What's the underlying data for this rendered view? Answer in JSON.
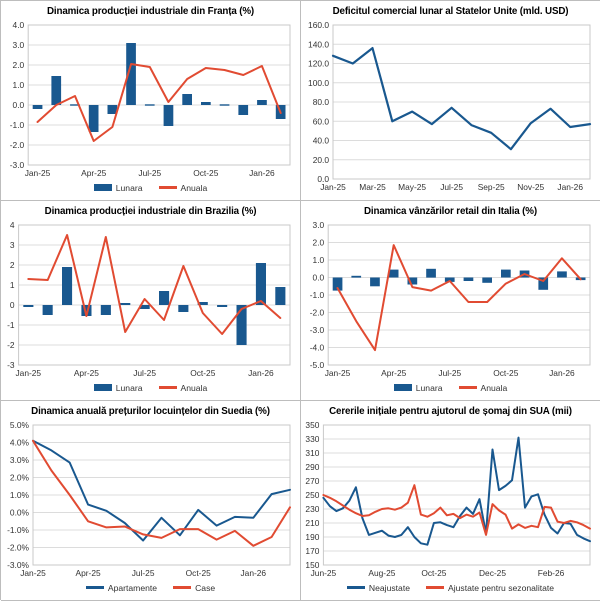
{
  "page": {
    "background": "#ffffff",
    "panel_border": "#bdbdbd"
  },
  "colors": {
    "blue": "#19588F",
    "red": "#E14B32",
    "grid": "#DCDCDC",
    "axis": "#C9C9C9",
    "tick_text": "#333333",
    "title_text": "#000000"
  },
  "chart_data": [
    {
      "type": "bar+line",
      "title": "Dinamica producției industriale din Franța (%)",
      "categories": [
        "Jan-25",
        "Feb-25",
        "Mar-25",
        "Apr-25",
        "May-25",
        "Jun-25",
        "Jul-25",
        "Aug-25",
        "Sep-25",
        "Oct-25",
        "Nov-25",
        "Dec-25",
        "Jan-26",
        "Feb-26"
      ],
      "x_tick_labels": [
        "Jan-25",
        "Apr-25",
        "Jul-25",
        "Oct-25",
        "Jan-26"
      ],
      "x_ticks": [
        0,
        3,
        6,
        9,
        12
      ],
      "ylim": [
        -3,
        4
      ],
      "ystep": 1,
      "yfmt": "1dp",
      "grid": true,
      "legend": true,
      "legend_position": "bottom",
      "series": [
        {
          "name": "Lunara",
          "type": "bar",
          "color": "blue",
          "values": [
            -0.2,
            1.45,
            0.05,
            -1.35,
            -0.45,
            3.1,
            -0.05,
            -1.05,
            0.55,
            0.15,
            0.05,
            -0.5,
            0.25,
            -0.7
          ]
        },
        {
          "name": "Anuala",
          "type": "line",
          "color": "red",
          "values": [
            -0.85,
            0.0,
            0.45,
            -1.8,
            -1.1,
            2.05,
            1.9,
            0.15,
            1.3,
            1.85,
            1.75,
            1.5,
            1.95,
            -0.4
          ]
        }
      ]
    },
    {
      "type": "line",
      "title": "Deficitul comercial lunar al Statelor Unite (mld. USD)",
      "categories": [
        "Jan-25",
        "Feb-25",
        "Mar-25",
        "Apr-25",
        "May-25",
        "Jun-25",
        "Jul-25",
        "Aug-25",
        "Sep-25",
        "Oct-25",
        "Nov-25",
        "Dec-25",
        "Jan-26",
        "Feb-26"
      ],
      "x_tick_labels": [
        "Jan-25",
        "Mar-25",
        "May-25",
        "Jul-25",
        "Sep-25",
        "Nov-25",
        "Jan-26"
      ],
      "x_ticks": [
        0,
        2,
        4,
        6,
        8,
        10,
        12
      ],
      "ylim": [
        0,
        160
      ],
      "ystep": 20,
      "yfmt": "1dp",
      "grid": true,
      "legend": false,
      "series": [
        {
          "name": "Deficit comercial",
          "type": "line",
          "color": "blue",
          "width": 2.2,
          "values": [
            128,
            120,
            136,
            60,
            70,
            57,
            74,
            56,
            48,
            31,
            58,
            73,
            54,
            57
          ]
        }
      ]
    },
    {
      "type": "bar+line",
      "title": "Dinamica producției industriale din Brazilia (%)",
      "categories": [
        "Jan-25",
        "Feb-25",
        "Mar-25",
        "Apr-25",
        "May-25",
        "Jun-25",
        "Jul-25",
        "Aug-25",
        "Sep-25",
        "Oct-25",
        "Nov-25",
        "Dec-25",
        "Jan-26",
        "Feb-26"
      ],
      "x_tick_labels": [
        "Jan-25",
        "Apr-25",
        "Jul-25",
        "Oct-25",
        "Jan-26"
      ],
      "x_ticks": [
        0,
        3,
        6,
        9,
        12
      ],
      "ylim": [
        -3,
        4
      ],
      "ystep": 1,
      "yfmt": "int",
      "grid": true,
      "legend": true,
      "legend_position": "bottom",
      "series": [
        {
          "name": "Lunara",
          "type": "bar",
          "color": "blue",
          "values": [
            -0.1,
            -0.5,
            1.9,
            -0.55,
            -0.5,
            0.1,
            -0.2,
            0.7,
            -0.35,
            0.15,
            -0.1,
            -2.0,
            2.1,
            0.9
          ]
        },
        {
          "name": "Anuala",
          "type": "line",
          "color": "red",
          "values": [
            1.3,
            1.25,
            3.5,
            -0.55,
            3.4,
            -1.35,
            0.3,
            -0.75,
            1.95,
            -0.4,
            -1.45,
            -0.2,
            0.2,
            -0.65
          ]
        }
      ]
    },
    {
      "type": "bar+line",
      "title": "Dinamica vânzărilor retail din Italia (%)",
      "categories": [
        "Jan-25",
        "Feb-25",
        "Mar-25",
        "Apr-25",
        "May-25",
        "Jun-25",
        "Jul-25",
        "Aug-25",
        "Sep-25",
        "Oct-25",
        "Nov-25",
        "Dec-25",
        "Jan-26",
        "Feb-26"
      ],
      "x_tick_labels": [
        "Jan-25",
        "Apr-25",
        "Jul-25",
        "Oct-25",
        "Jan-26"
      ],
      "x_ticks": [
        0,
        3,
        6,
        9,
        12
      ],
      "ylim": [
        -5,
        3
      ],
      "ystep": 1,
      "yfmt": "1dp",
      "grid": true,
      "legend": true,
      "legend_position": "bottom",
      "series": [
        {
          "name": "Lunara",
          "type": "bar",
          "color": "blue",
          "values": [
            -0.75,
            0.1,
            -0.5,
            0.45,
            -0.4,
            0.5,
            -0.25,
            -0.2,
            -0.3,
            0.45,
            0.4,
            -0.7,
            0.35,
            -0.15
          ]
        },
        {
          "name": "Anuala",
          "type": "line",
          "color": "red",
          "values": [
            -0.6,
            -2.5,
            -4.15,
            1.85,
            -0.55,
            -0.75,
            -0.2,
            -1.4,
            -1.4,
            -0.35,
            0.2,
            -0.2,
            1.1,
            -0.1
          ]
        }
      ]
    },
    {
      "type": "line",
      "title": "Dinamica anuală prețurilor locuințelor din Suedia (%)",
      "categories": [
        "Jan-25",
        "Feb-25",
        "Mar-25",
        "Apr-25",
        "May-25",
        "Jun-25",
        "Jul-25",
        "Aug-25",
        "Sep-25",
        "Oct-25",
        "Nov-25",
        "Dec-25",
        "Jan-26",
        "Feb-26",
        "Mar-26"
      ],
      "x_tick_labels": [
        "Jan-25",
        "Apr-25",
        "Jul-25",
        "Oct-25",
        "Jan-26"
      ],
      "x_ticks": [
        0,
        3,
        6,
        9,
        12
      ],
      "ylim": [
        -3,
        5
      ],
      "ystep": 1,
      "yfmt": "pct",
      "grid": true,
      "legend": true,
      "legend_position": "bottom",
      "series": [
        {
          "name": "Apartamente",
          "type": "line",
          "color": "blue",
          "values": [
            4.1,
            3.55,
            2.85,
            0.45,
            0.1,
            -0.6,
            -1.6,
            -0.3,
            -1.3,
            0.15,
            -0.75,
            -0.25,
            -0.3,
            1.05,
            1.3
          ]
        },
        {
          "name": "Case",
          "type": "line",
          "color": "red",
          "values": [
            4.1,
            2.4,
            1.0,
            -0.5,
            -0.85,
            -0.8,
            -1.25,
            -1.45,
            -0.95,
            -0.95,
            -1.55,
            -1.05,
            -1.9,
            -1.4,
            0.3
          ]
        }
      ]
    },
    {
      "type": "line",
      "title": "Cererile inițiale pentru ajutorul de șomaj din SUA (mii)",
      "categories": [
        "Jun-25",
        "w2",
        "w3",
        "w4",
        "w5",
        "w6",
        "w7",
        "w8",
        "w9",
        "Aug-25",
        "w11",
        "w12",
        "w13",
        "w14",
        "w15",
        "w16",
        "w17",
        "Oct-25",
        "w19",
        "w20",
        "w21",
        "w22",
        "w23",
        "w24",
        "w25",
        "w26",
        "Dec-25",
        "w28",
        "w29",
        "w30",
        "w31",
        "w32",
        "w33",
        "w34",
        "w35",
        "Feb-26",
        "w37",
        "w38",
        "w39",
        "w40",
        "w41",
        "w42"
      ],
      "x_tick_labels": [
        "Jun-25",
        "Aug-25",
        "Oct-25",
        "Dec-25",
        "Feb-26"
      ],
      "x_ticks": [
        0,
        9,
        17,
        26,
        35
      ],
      "ylim": [
        150,
        350
      ],
      "ystep": 20,
      "yfmt": "int",
      "grid": true,
      "legend": true,
      "legend_position": "bottom",
      "series": [
        {
          "name": "Neajustate",
          "type": "line",
          "color": "blue",
          "values": [
            246,
            234,
            227,
            231,
            242,
            261,
            217,
            193,
            196,
            199,
            192,
            190,
            193,
            204,
            190,
            181,
            179,
            210,
            211,
            207,
            204,
            220,
            232,
            223,
            244,
            195,
            315,
            257,
            263,
            271,
            332,
            232,
            248,
            251,
            222,
            203,
            195,
            210,
            209,
            193,
            188,
            184
          ]
        },
        {
          "name": "Ajustate pentru sezonalitate",
          "type": "line",
          "color": "red",
          "values": [
            250,
            246,
            241,
            235,
            229,
            224,
            220,
            221,
            226,
            230,
            231,
            229,
            232,
            239,
            264,
            222,
            219,
            224,
            232,
            221,
            223,
            217,
            222,
            219,
            225,
            193,
            237,
            228,
            222,
            202,
            208,
            203,
            206,
            204,
            233,
            232,
            212,
            210,
            213,
            211,
            207,
            202
          ]
        }
      ]
    }
  ]
}
